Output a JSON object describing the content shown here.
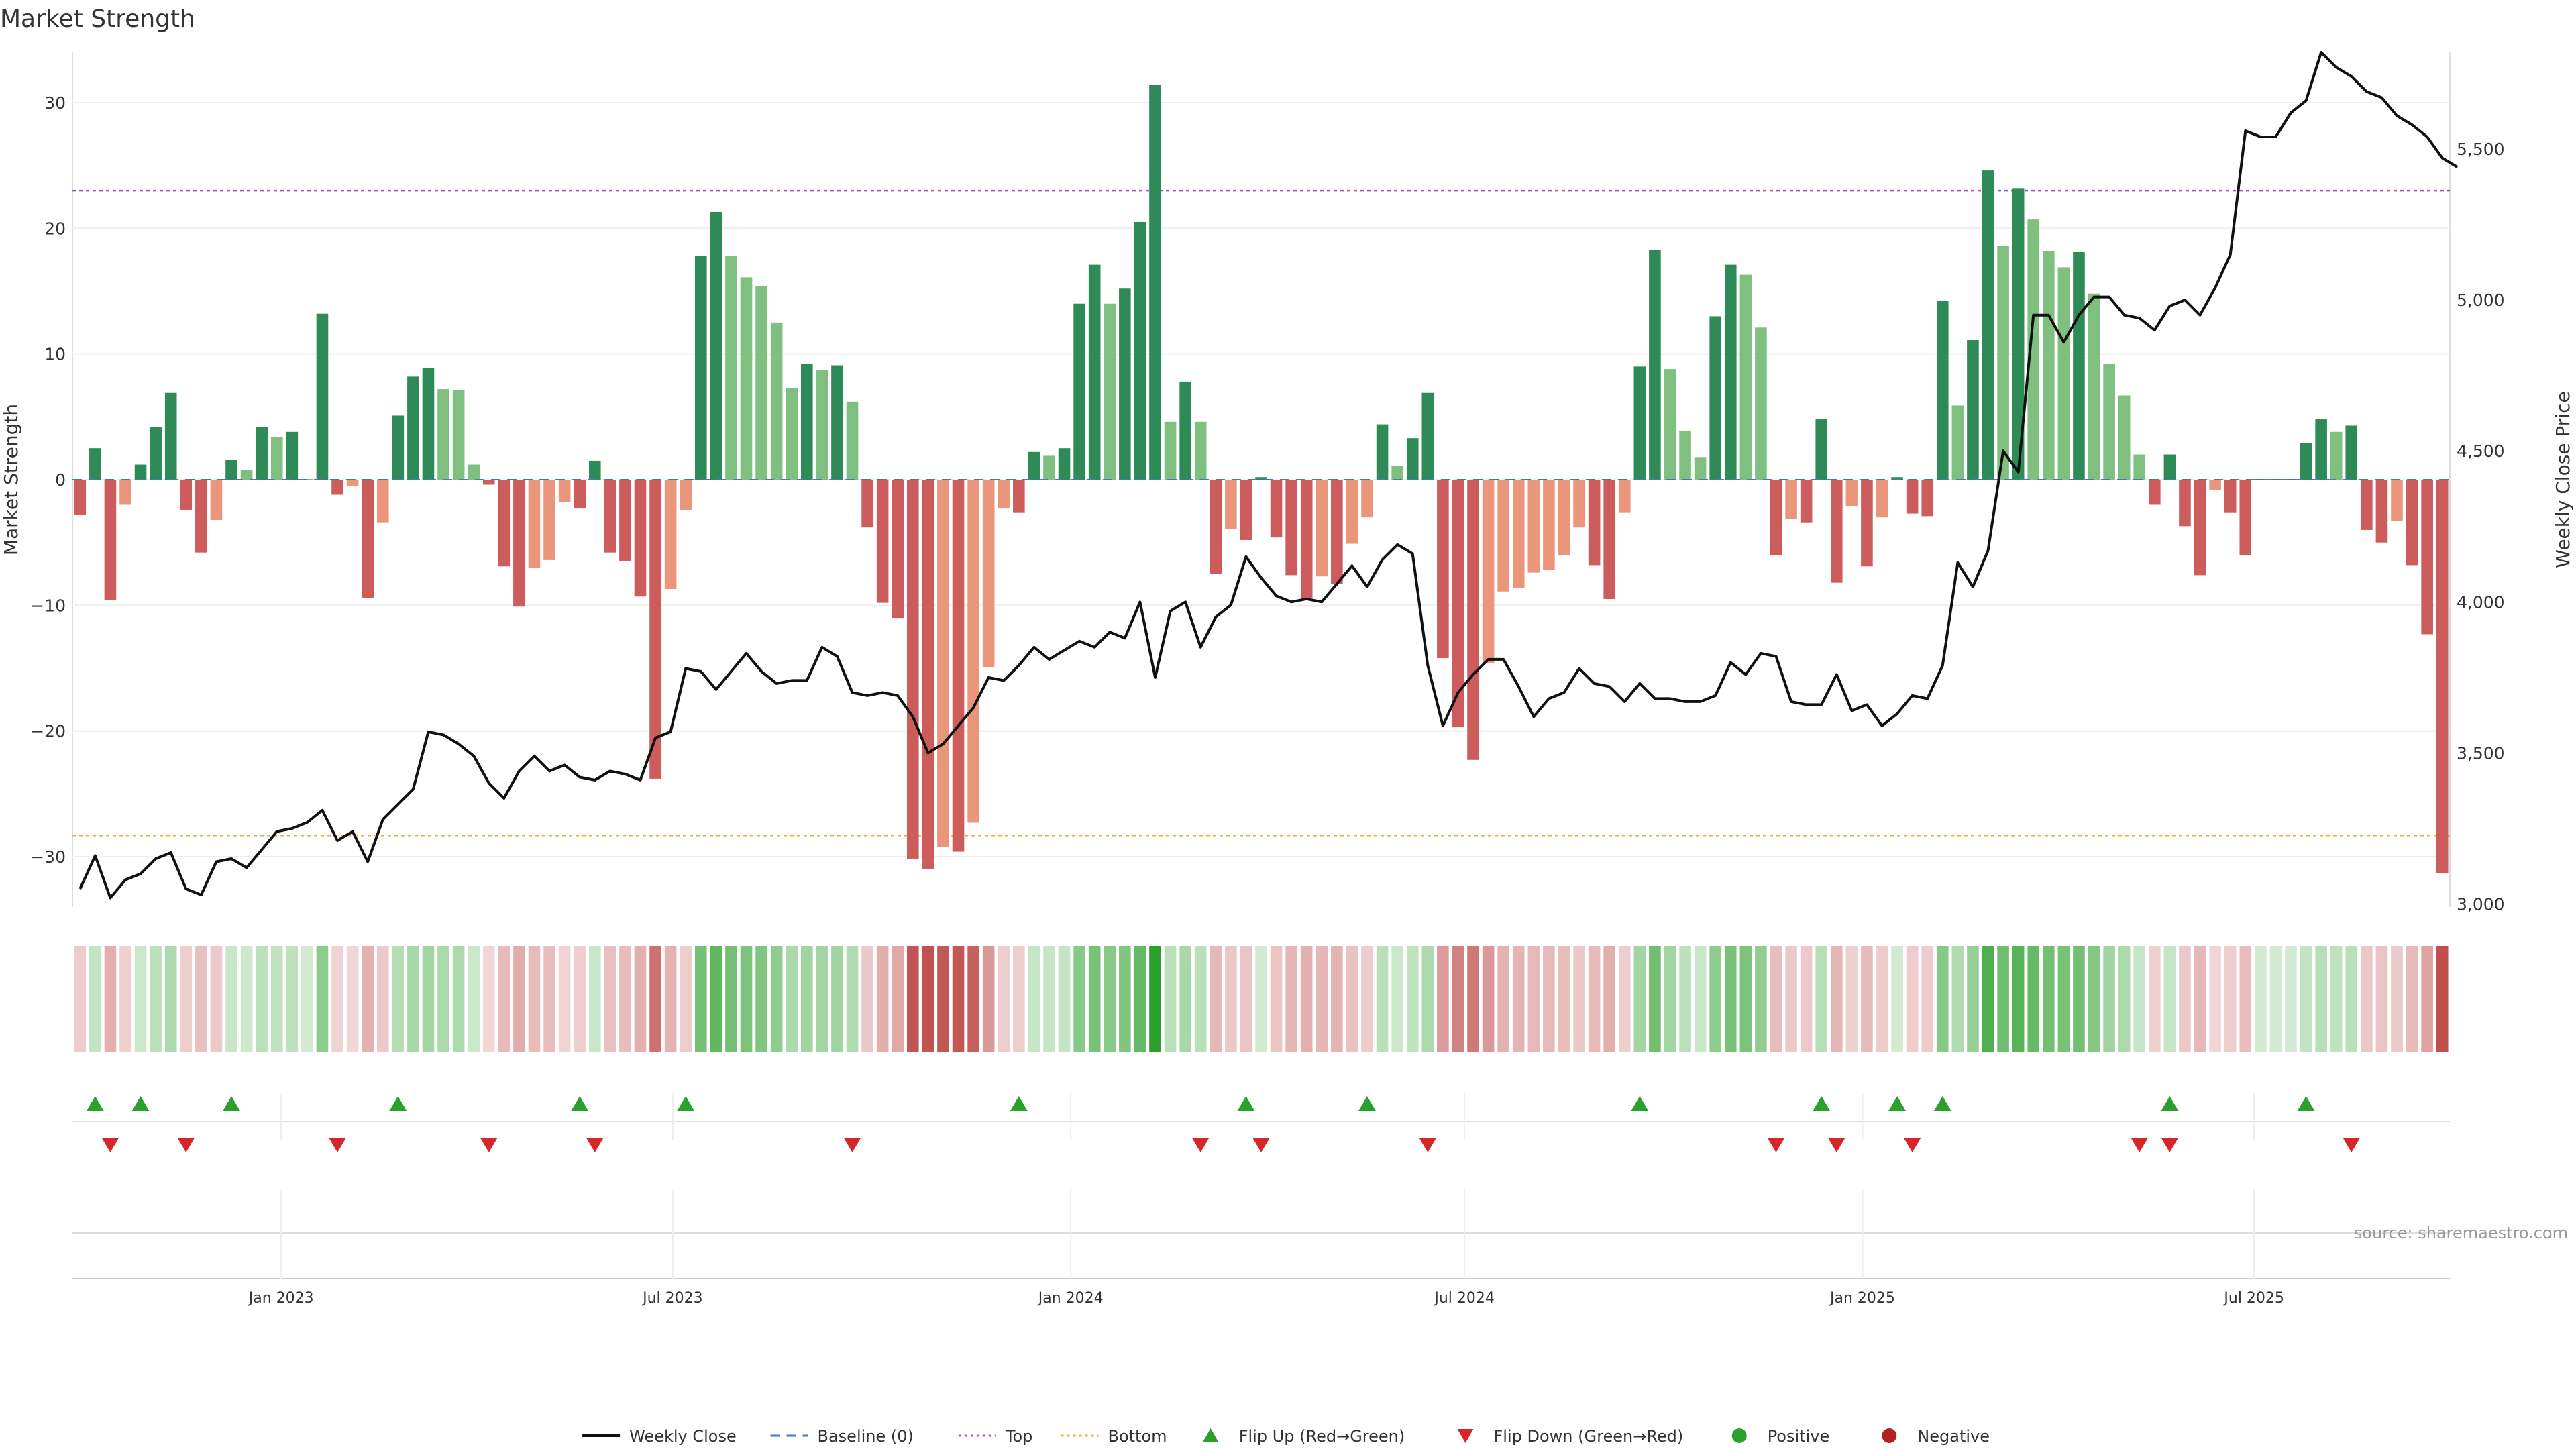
{
  "chart_data": {
    "type": "bar",
    "title": "Market Strength",
    "ylabel_left": "Market Strength",
    "ylabel_right": "Weekly Close Price",
    "ylim_left": [
      -34,
      34
    ],
    "yticks_left": [
      -30,
      -20,
      -10,
      0,
      10,
      20,
      30
    ],
    "ylim_right": [
      2990,
      5820
    ],
    "yticks_right": [
      3000,
      3500,
      4000,
      4500,
      5000,
      5500
    ],
    "yticks_right_labels": [
      "3,000",
      "3,500",
      "4,000",
      "4,500",
      "5,000",
      "5,500"
    ],
    "x_start": "2022-09-30",
    "x_step_days": 7,
    "x_ticks": [
      {
        "date": "2023-01-01",
        "label": "Jan 2023"
      },
      {
        "date": "2023-07-01",
        "label": "Jul 2023"
      },
      {
        "date": "2024-01-01",
        "label": "Jan 2024"
      },
      {
        "date": "2024-07-01",
        "label": "Jul 2024"
      },
      {
        "date": "2025-01-01",
        "label": "Jan 2025"
      },
      {
        "date": "2025-07-01",
        "label": "Jul 2025"
      }
    ],
    "top_level": 23,
    "bottom_level": -28.3,
    "strength": [
      -2.8,
      2.5,
      -9.6,
      -2,
      1.2,
      4.2,
      6.9,
      -2.4,
      -5.8,
      -3.2,
      1.6,
      0.8,
      4.2,
      3.4,
      3.8,
      0,
      13.2,
      -1.2,
      -0.5,
      -9.4,
      -3.4,
      5.1,
      8.2,
      8.9,
      7.2,
      7.1,
      1.2,
      -0.4,
      -6.9,
      -10.1,
      -7,
      -6.4,
      -1.8,
      -2.3,
      1.5,
      -5.8,
      -6.5,
      -9.3,
      -23.8,
      -8.7,
      -2.4,
      17.8,
      21.3,
      17.8,
      16.1,
      15.4,
      12.5,
      7.3,
      9.2,
      8.7,
      9.1,
      6.2,
      -3.8,
      -9.8,
      -11,
      -30.2,
      -31,
      -29.2,
      -29.6,
      -27.3,
      -14.9,
      -2.3,
      -2.6,
      2.2,
      1.9,
      2.5,
      14,
      17.1,
      14,
      15.2,
      20.5,
      31.4,
      4.6,
      7.8,
      4.6,
      -7.5,
      -3.9,
      -4.8,
      0.2,
      -4.6,
      -7.6,
      -9.4,
      -7.7,
      -8.3,
      -5.1,
      -3,
      4.4,
      1.1,
      3.3,
      6.9,
      -14.2,
      -19.7,
      -22.3,
      -14.6,
      -8.9,
      -8.6,
      -7.4,
      -7.2,
      -6,
      -3.8,
      -6.8,
      -9.5,
      -2.6,
      9,
      18.3,
      8.8,
      3.9,
      1.8,
      13,
      17.1,
      16.3,
      12.1,
      -6,
      -3.1,
      -3.4,
      4.8,
      -8.2,
      -2.1,
      -6.9,
      -3,
      0.2,
      -2.7,
      -2.9,
      14.2,
      5.9,
      11.1,
      24.6,
      18.6,
      23.2,
      20.7,
      18.2,
      16.9,
      18.1,
      14.8,
      9.2,
      6.7,
      2,
      -2,
      2,
      -3.7,
      -7.6,
      -0.8,
      -2.6,
      -6,
      0,
      0,
      0,
      2.9,
      4.8,
      3.8,
      4.3,
      -4,
      -5,
      -3.3,
      -6.8,
      -12.3,
      -31.3
    ],
    "close": [
      3050,
      3160,
      3020,
      3080,
      3100,
      3150,
      3170,
      3050,
      3030,
      3140,
      3150,
      3120,
      3180,
      3240,
      3250,
      3270,
      3310,
      3210,
      3240,
      3140,
      3280,
      3330,
      3380,
      3570,
      3560,
      3530,
      3490,
      3400,
      3350,
      3440,
      3490,
      3440,
      3460,
      3420,
      3410,
      3440,
      3430,
      3410,
      3550,
      3570,
      3780,
      3770,
      3710,
      3770,
      3830,
      3770,
      3730,
      3740,
      3740,
      3850,
      3820,
      3700,
      3690,
      3700,
      3690,
      3620,
      3500,
      3530,
      3590,
      3650,
      3750,
      3740,
      3790,
      3850,
      3810,
      3840,
      3870,
      3850,
      3900,
      3880,
      4000,
      3750,
      3970,
      4000,
      3850,
      3950,
      3990,
      4150,
      4080,
      4020,
      4000,
      4010,
      4000,
      4060,
      4120,
      4050,
      4140,
      4190,
      4160,
      3790,
      3590,
      3700,
      3760,
      3810,
      3810,
      3720,
      3620,
      3680,
      3700,
      3780,
      3730,
      3720,
      3670,
      3730,
      3680,
      3680,
      3670,
      3670,
      3690,
      3800,
      3760,
      3830,
      3820,
      3670,
      3660,
      3660,
      3760,
      3640,
      3660,
      3590,
      3630,
      3690,
      3680,
      3790,
      4130,
      4050,
      4170,
      4500,
      4430,
      4950,
      4950,
      4860,
      4950,
      5010,
      5010,
      4950,
      4940,
      4900,
      4980,
      5000,
      4950,
      5040,
      5150,
      5560,
      5540,
      5540,
      5620,
      5660,
      5820,
      5770,
      5740,
      5690,
      5670,
      5610,
      5580,
      5540,
      5470,
      5440
    ],
    "flip_up_markers": [
      1,
      4,
      10,
      21,
      33,
      40,
      62,
      77,
      85,
      103,
      115,
      120,
      123,
      138,
      147
    ],
    "flip_down_markers": [
      2,
      7,
      17,
      27,
      34,
      51,
      74,
      78,
      89,
      112,
      116,
      121,
      136,
      138,
      150
    ],
    "colors": {
      "pos_strong": "#2e8b57",
      "pos_light": "#7fbf7f",
      "neg_strong": "#cd5c5c",
      "neg_light": "#e9967a",
      "line": "#111111",
      "top": "#9b59b6",
      "bottom": "#f0a830",
      "baseline": "#4a7aa8",
      "flip_up": "#2ca02c",
      "flip_down": "#d62728",
      "positive_dot": "#2ca02c",
      "negative_dot": "#b22222"
    },
    "legend": [
      {
        "label": "Weekly Close",
        "kind": "line"
      },
      {
        "label": "Baseline (0)",
        "kind": "dash"
      },
      {
        "label": "Top",
        "kind": "dot-purple"
      },
      {
        "label": "Bottom",
        "kind": "dot-orange"
      },
      {
        "label": "Flip Up (Red→Green)",
        "kind": "tri-up"
      },
      {
        "label": "Flip Down (Green→Red)",
        "kind": "tri-down"
      },
      {
        "label": "Positive",
        "kind": "circle-green"
      },
      {
        "label": "Negative",
        "kind": "circle-red"
      }
    ],
    "source": "source: sharemaestro.com"
  }
}
